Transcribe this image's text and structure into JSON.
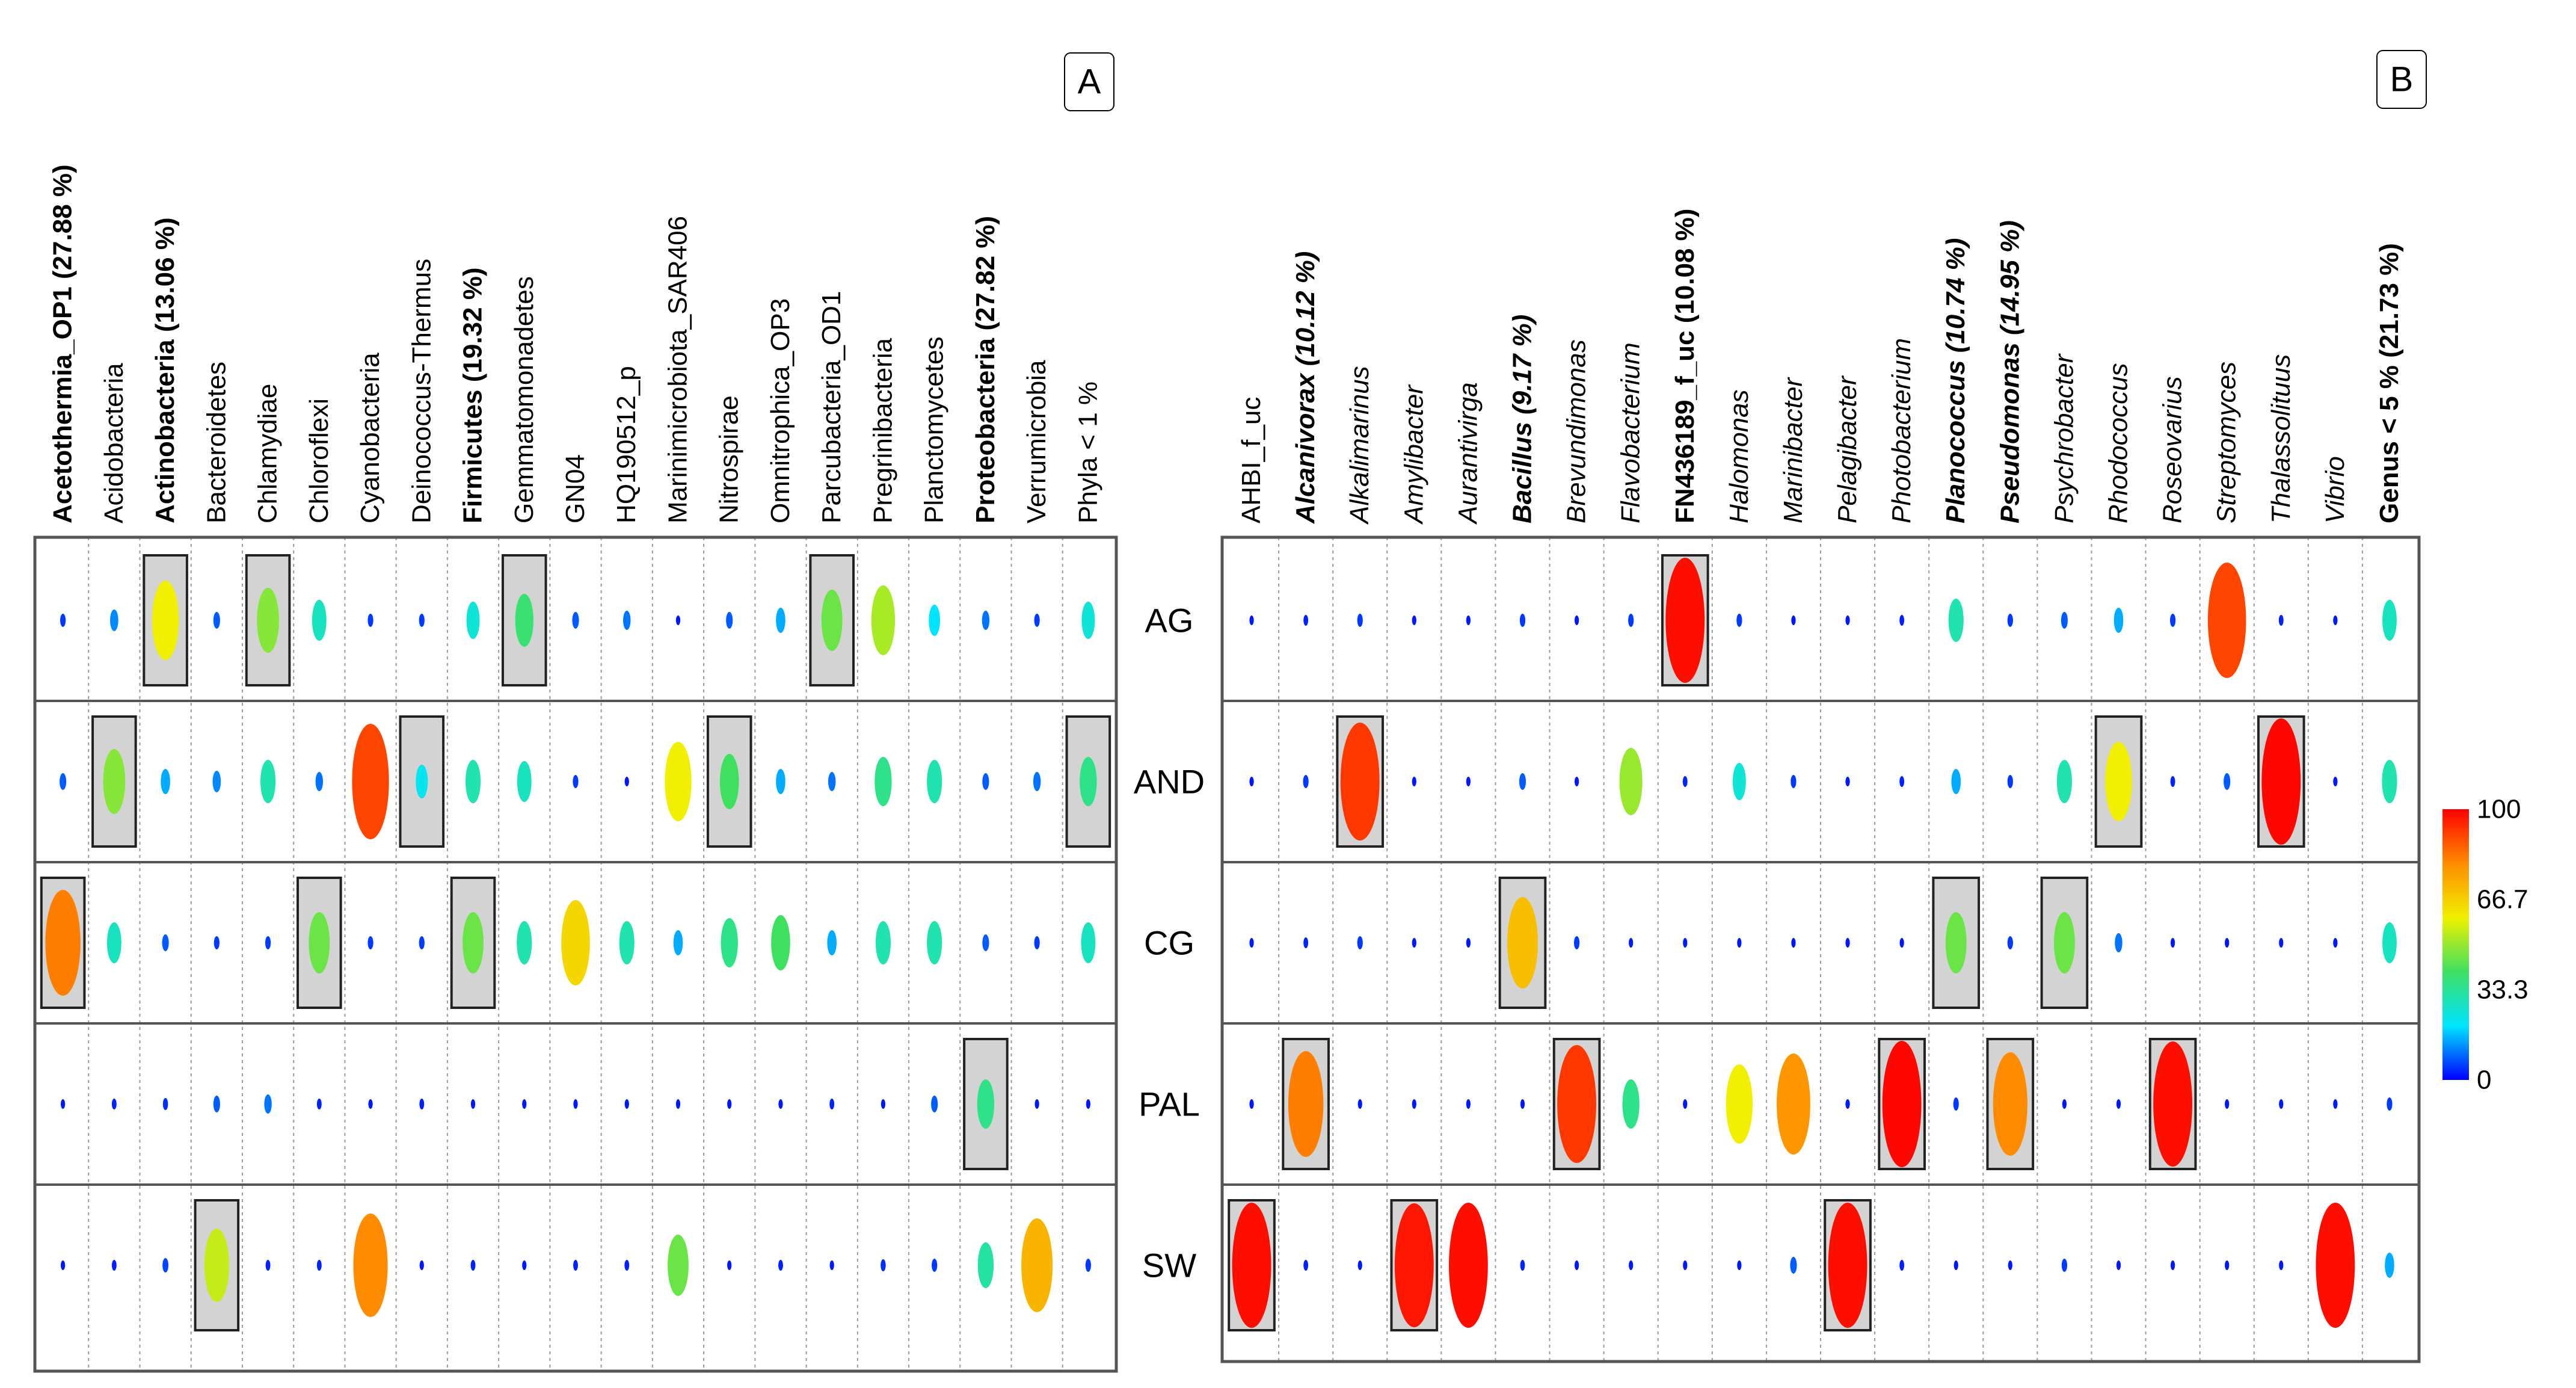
{
  "figure": {
    "panel_a_badge": "A",
    "panel_b_badge": "B"
  },
  "chart_data": [
    {
      "type": "heatmap",
      "panel": "A",
      "title": "",
      "rows": [
        "AG",
        "AND",
        "CG",
        "PAL",
        "SW"
      ],
      "columns": [
        {
          "label": "Acetothermia_OP1 (27.88 %)",
          "bold": true,
          "italic": false
        },
        {
          "label": "Acidobacteria",
          "bold": false,
          "italic": false
        },
        {
          "label": "Actinobacteria (13.06 %)",
          "bold": true,
          "italic": false
        },
        {
          "label": "Bacteroidetes",
          "bold": false,
          "italic": false
        },
        {
          "label": "Chlamydiae",
          "bold": false,
          "italic": false
        },
        {
          "label": "Chloroflexi",
          "bold": false,
          "italic": false
        },
        {
          "label": "Cyanobacteria",
          "bold": false,
          "italic": false
        },
        {
          "label": "Deinococcus-Thermus",
          "bold": false,
          "italic": false
        },
        {
          "label": "Firmicutes (19.32 %)",
          "bold": true,
          "italic": false
        },
        {
          "label": "Gemmatomonadetes",
          "bold": false,
          "italic": false
        },
        {
          "label": "GN04",
          "bold": false,
          "italic": false
        },
        {
          "label": "HQ190512_p",
          "bold": false,
          "italic": false
        },
        {
          "label": "Marinimicrobiota_SAR406",
          "bold": false,
          "italic": false
        },
        {
          "label": "Nitrospirae",
          "bold": false,
          "italic": false
        },
        {
          "label": "Omnitrophica_OP3",
          "bold": false,
          "italic": false
        },
        {
          "label": "Parcubacteria_OD1",
          "bold": false,
          "italic": false
        },
        {
          "label": "Pregrinibacteria",
          "bold": false,
          "italic": false
        },
        {
          "label": "Planctomycetes",
          "bold": false,
          "italic": false
        },
        {
          "label": "Proteobacteria (27.82 %)",
          "bold": true,
          "italic": false
        },
        {
          "label": "Verrumicrobia",
          "bold": false,
          "italic": false
        },
        {
          "label": "Phyla < 1 %",
          "bold": false,
          "italic": false
        }
      ],
      "values": [
        [
          5,
          12,
          60,
          8,
          48,
          28,
          5,
          5,
          25,
          38,
          8,
          10,
          2,
          8,
          15,
          45,
          52,
          20,
          10,
          5,
          25
        ],
        [
          8,
          48,
          15,
          12,
          30,
          10,
          90,
          22,
          30,
          28,
          5,
          2,
          60,
          40,
          15,
          10,
          35,
          30,
          8,
          10,
          35
        ],
        [
          82,
          28,
          8,
          5,
          5,
          45,
          5,
          5,
          45,
          30,
          65,
          30,
          15,
          35,
          40,
          15,
          30,
          30,
          8,
          5,
          28
        ],
        [
          2,
          3,
          4,
          8,
          10,
          3,
          2,
          3,
          2,
          2,
          2,
          2,
          2,
          2,
          2,
          3,
          2,
          8,
          35,
          2,
          2
        ],
        [
          2,
          3,
          6,
          55,
          3,
          3,
          80,
          2,
          3,
          2,
          3,
          3,
          45,
          2,
          3,
          2,
          4,
          5,
          32,
          72,
          5
        ]
      ],
      "highlighted": [
        [
          "AG",
          "Actinobacteria (13.06 %)"
        ],
        [
          "AG",
          "Chlamydiae"
        ],
        [
          "AG",
          "Gemmatomonadetes"
        ],
        [
          "AG",
          "Parcubacteria_OD1"
        ],
        [
          "AND",
          "Acidobacteria"
        ],
        [
          "AND",
          "Deinococcus-Thermus"
        ],
        [
          "AND",
          "Nitrospirae"
        ],
        [
          "AND",
          "Phyla < 1 %"
        ],
        [
          "CG",
          "Acetothermia_OP1 (27.88 %)"
        ],
        [
          "CG",
          "Chloroflexi"
        ],
        [
          "CG",
          "Firmicutes (19.32 %)"
        ],
        [
          "PAL",
          "Proteobacteria (27.82 %)"
        ],
        [
          "SW",
          "Bacteroidetes"
        ]
      ]
    },
    {
      "type": "heatmap",
      "panel": "B",
      "title": "",
      "rows": [
        "AG",
        "AND",
        "CG",
        "PAL",
        "SW"
      ],
      "columns": [
        {
          "label": "AHBI_f_uc",
          "bold": false,
          "italic": false
        },
        {
          "label": "Alcanivorax (10.12 %)",
          "bold": true,
          "italic": true
        },
        {
          "label": "Alkalimarinus",
          "bold": false,
          "italic": true
        },
        {
          "label": "Amylibacter",
          "bold": false,
          "italic": true
        },
        {
          "label": "Aurantivirga",
          "bold": false,
          "italic": true
        },
        {
          "label": "Bacillus (9.17 %)",
          "bold": true,
          "italic": true
        },
        {
          "label": "Brevundimonas",
          "bold": false,
          "italic": true
        },
        {
          "label": "Flavobacterium",
          "bold": false,
          "italic": true
        },
        {
          "label": "FN436189_f_uc (10.08 %)",
          "bold": true,
          "italic": false
        },
        {
          "label": "Halomonas",
          "bold": false,
          "italic": true
        },
        {
          "label": "Marinibacter",
          "bold": false,
          "italic": true
        },
        {
          "label": "Pelagibacter",
          "bold": false,
          "italic": true
        },
        {
          "label": "Photobacterium",
          "bold": false,
          "italic": true
        },
        {
          "label": "Planococcus (10.74 %)",
          "bold": true,
          "italic": true
        },
        {
          "label": "Pseudomonas (14.95 %)",
          "bold": true,
          "italic": true
        },
        {
          "label": "Psychrobacter",
          "bold": false,
          "italic": true
        },
        {
          "label": "Rhodococcus",
          "bold": false,
          "italic": true
        },
        {
          "label": "Roseovarius",
          "bold": false,
          "italic": true
        },
        {
          "label": "Streptomyces",
          "bold": false,
          "italic": true
        },
        {
          "label": "Thalassolituus",
          "bold": false,
          "italic": true
        },
        {
          "label": "Vibrio",
          "bold": false,
          "italic": true
        },
        {
          "label": "Genus < 5 % (21.73 %)",
          "bold": true,
          "italic": false
        }
      ],
      "values": [
        [
          2,
          3,
          5,
          2,
          2,
          5,
          2,
          5,
          98,
          5,
          2,
          2,
          3,
          30,
          5,
          8,
          15,
          5,
          90,
          3,
          2,
          28
        ],
        [
          2,
          5,
          92,
          2,
          2,
          8,
          2,
          50,
          3,
          25,
          5,
          2,
          3,
          15,
          5,
          30,
          60,
          3,
          8,
          99,
          2,
          30
        ],
        [
          2,
          3,
          5,
          2,
          2,
          70,
          5,
          2,
          2,
          2,
          2,
          2,
          2,
          45,
          5,
          45,
          10,
          2,
          2,
          2,
          2,
          28
        ],
        [
          2,
          82,
          2,
          2,
          2,
          2,
          92,
          35,
          2,
          60,
          78,
          2,
          99,
          5,
          80,
          2,
          2,
          98,
          2,
          2,
          2,
          5
        ],
        [
          98,
          3,
          2,
          97,
          98,
          3,
          2,
          2,
          2,
          2,
          8,
          98,
          3,
          2,
          2,
          5,
          2,
          2,
          2,
          2,
          98,
          15
        ]
      ],
      "highlighted": [
        [
          "AG",
          "FN436189_f_uc (10.08 %)"
        ],
        [
          "AND",
          "Alkalimarinus"
        ],
        [
          "AND",
          "Rhodococcus"
        ],
        [
          "AND",
          "Thalassolituus"
        ],
        [
          "CG",
          "Bacillus (9.17 %)"
        ],
        [
          "CG",
          "Planococcus (10.74 %)"
        ],
        [
          "CG",
          "Psychrobacter"
        ],
        [
          "PAL",
          "Alcanivorax (10.12 %)"
        ],
        [
          "PAL",
          "Brevundimonas"
        ],
        [
          "PAL",
          "Photobacterium"
        ],
        [
          "PAL",
          "Pseudomonas (14.95 %)"
        ],
        [
          "PAL",
          "Roseovarius"
        ],
        [
          "SW",
          "AHBI_f_uc"
        ],
        [
          "SW",
          "Amylibacter"
        ],
        [
          "SW",
          "Pelagibacter"
        ]
      ],
      "color_scale": {
        "ticks": [
          "100",
          "66.7",
          "33.3",
          "0"
        ],
        "range": [
          0,
          100
        ],
        "colors": [
          "#0000ff",
          "#00e5ff",
          "#3fe060",
          "#f0f000",
          "#ff8c00",
          "#ff0000"
        ]
      }
    }
  ]
}
